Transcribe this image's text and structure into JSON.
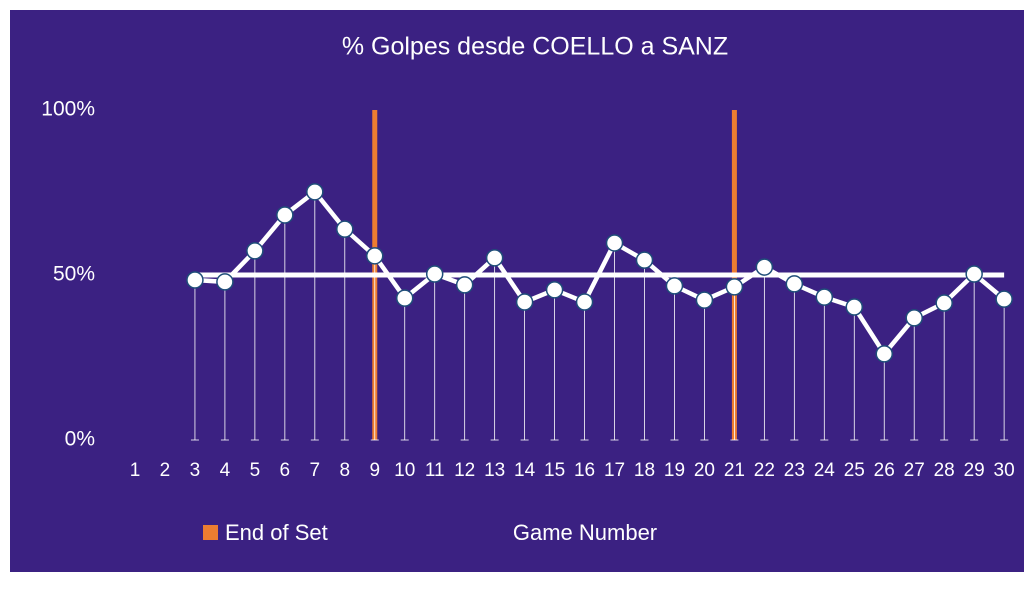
{
  "chart_data": {
    "type": "line",
    "title": "% Golpes desde COELLO a SANZ",
    "x_label": "Game Number",
    "categories": [
      "1",
      "2",
      "3",
      "4",
      "5",
      "6",
      "7",
      "8",
      "9",
      "10",
      "11",
      "12",
      "13",
      "14",
      "15",
      "16",
      "17",
      "18",
      "19",
      "20",
      "21",
      "22",
      "23",
      "24",
      "25",
      "26",
      "27",
      "28",
      "29",
      "30"
    ],
    "series": [
      {
        "color": "#ffffff",
        "marker": true,
        "drop_lines": true,
        "values": [
          null,
          null,
          48.5,
          47.9,
          57.3,
          68.2,
          75.2,
          63.9,
          55.8,
          43.0,
          50.3,
          47.0,
          55.2,
          41.8,
          45.5,
          41.8,
          59.7,
          54.5,
          46.7,
          42.4,
          46.4,
          52.4,
          47.3,
          43.3,
          40.3,
          26.1,
          37.0,
          41.5,
          50.3,
          42.7
        ]
      },
      {
        "color": "#ffffff",
        "marker": false,
        "values": [
          null,
          null,
          50,
          50,
          50,
          50,
          50,
          50,
          50,
          50,
          50,
          50,
          50,
          50,
          50,
          50,
          50,
          50,
          50,
          50,
          50,
          50,
          50,
          50,
          50,
          50,
          50,
          50,
          50,
          50
        ]
      },
      {
        "name": "End of Set",
        "color": "#ed7d31",
        "kind": "bar",
        "values": [
          null,
          null,
          null,
          null,
          null,
          null,
          null,
          null,
          100,
          null,
          null,
          null,
          null,
          null,
          null,
          null,
          null,
          null,
          null,
          null,
          100,
          null,
          null,
          null,
          null,
          null,
          null,
          null,
          null,
          null
        ]
      }
    ],
    "ylim": [
      0,
      100
    ],
    "yticks": [
      {
        "value": 0,
        "label": "0%"
      },
      {
        "value": 50,
        "label": "50%"
      },
      {
        "value": 100,
        "label": "100%"
      }
    ],
    "grid": false,
    "legend": "bottom-left",
    "background": "#3b2182"
  }
}
